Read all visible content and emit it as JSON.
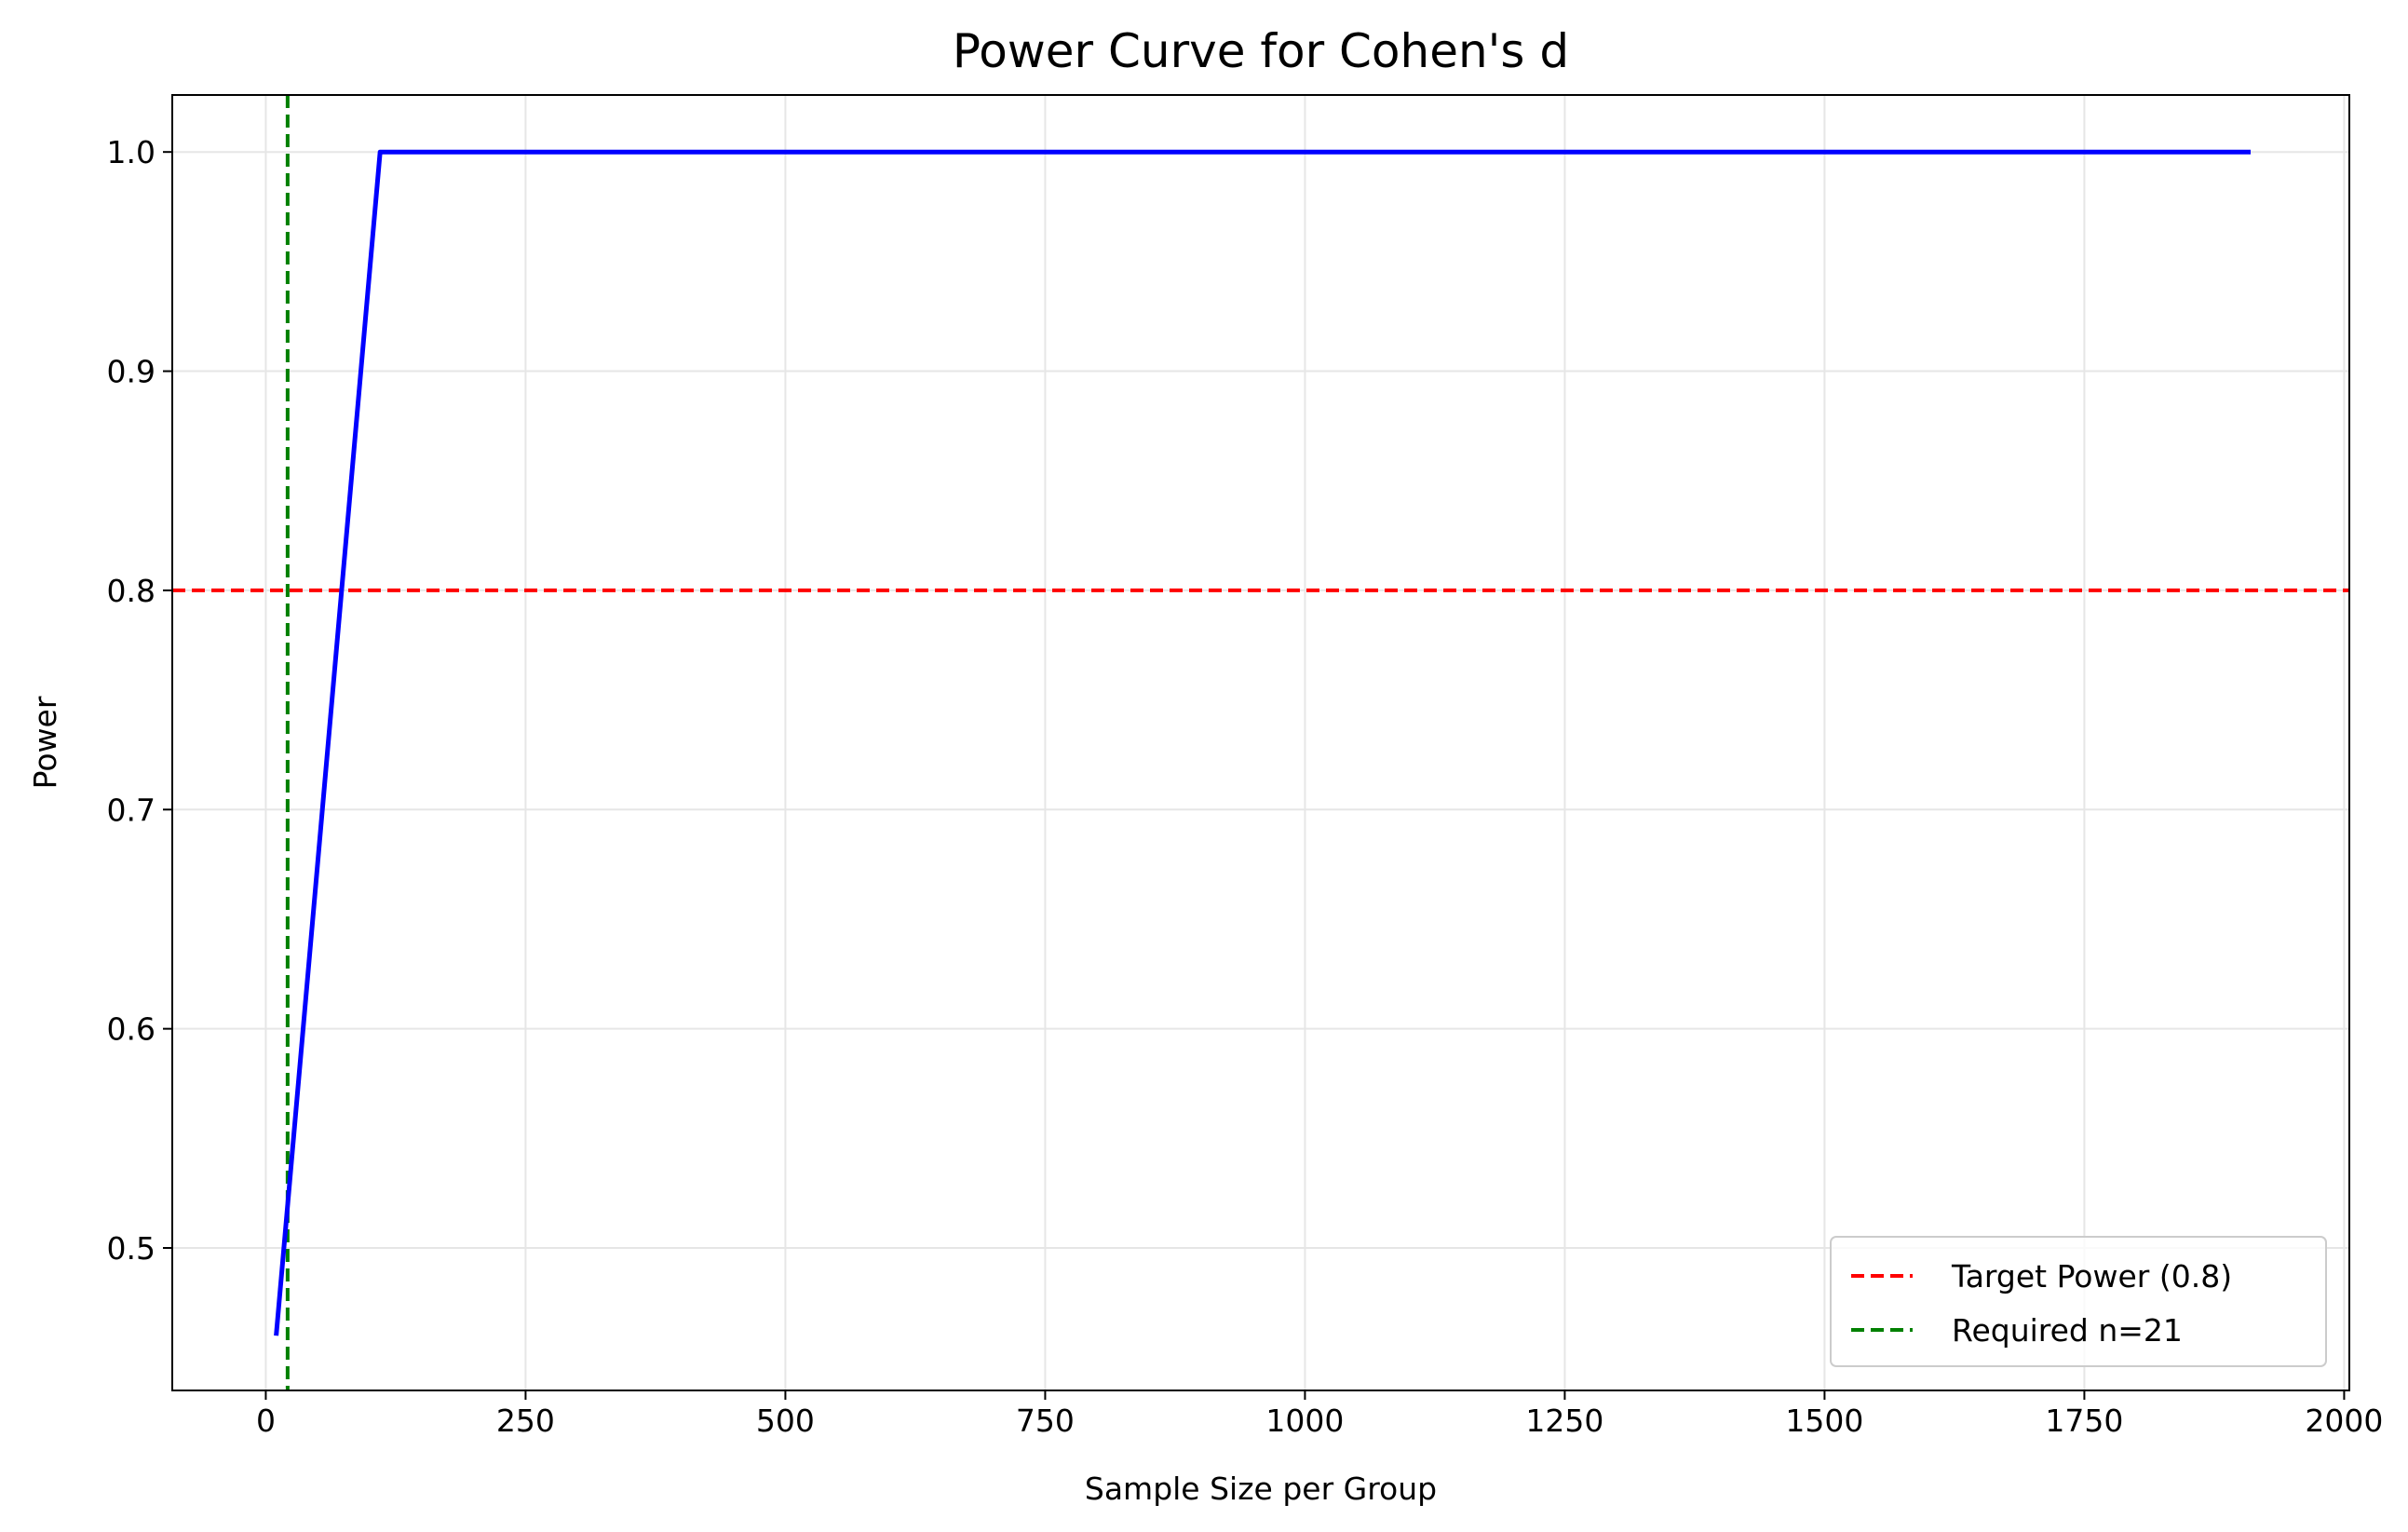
{
  "chart_data": {
    "type": "line",
    "title": "Power Curve for Cohen's d",
    "xlabel": "Sample Size per Group",
    "ylabel": "Power",
    "xlim": [
      -90,
      2005
    ],
    "ylim": [
      0.435,
      1.026
    ],
    "xticks": [
      0,
      250,
      500,
      750,
      1000,
      1250,
      1500,
      1750,
      2000
    ],
    "yticks": [
      0.5,
      0.6,
      0.7,
      0.8,
      0.9,
      1.0
    ],
    "xtick_labels": [
      "0",
      "250",
      "500",
      "750",
      "1000",
      "1250",
      "1500",
      "1750",
      "2000"
    ],
    "ytick_labels": [
      "0.5",
      "0.6",
      "0.7",
      "0.8",
      "0.9",
      "1.0"
    ],
    "grid": true,
    "legend_position": "lower right",
    "series": [
      {
        "name": "",
        "color": "#0000ff",
        "style": "solid",
        "x": [
          10,
          110,
          210,
          310,
          410,
          510,
          610,
          710,
          810,
          910,
          1010,
          1110,
          1210,
          1310,
          1410,
          1510,
          1610,
          1710,
          1810,
          1910
        ],
        "y": [
          0.46,
          1.0,
          1.0,
          1.0,
          1.0,
          1.0,
          1.0,
          1.0,
          1.0,
          1.0,
          1.0,
          1.0,
          1.0,
          1.0,
          1.0,
          1.0,
          1.0,
          1.0,
          1.0,
          1.0
        ]
      }
    ],
    "reference_lines": [
      {
        "orientation": "horizontal",
        "value": 0.8,
        "name": "Target Power (0.8)",
        "color": "#ff0000",
        "style": "dashed"
      },
      {
        "orientation": "vertical",
        "value": 21,
        "name": "Required n=21",
        "color": "#008000",
        "style": "dashed"
      }
    ]
  }
}
